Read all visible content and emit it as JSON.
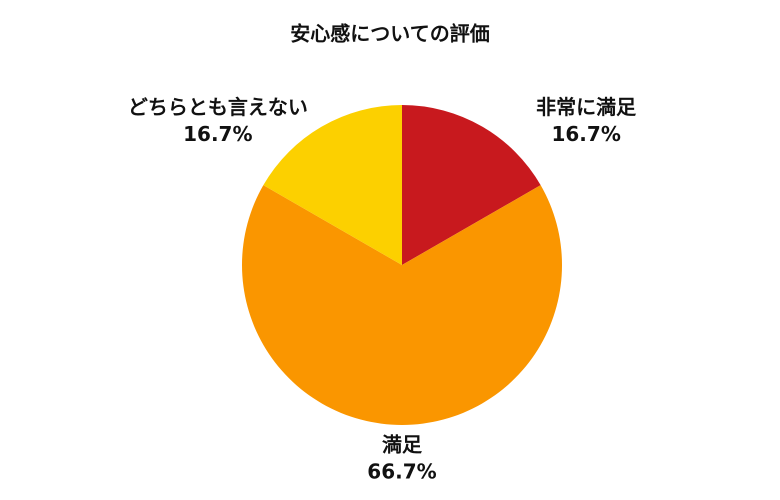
{
  "chart_data": {
    "type": "pie",
    "title": "安心感についての評価",
    "categories": [
      "非常に満足",
      "満足",
      "どちらとも言えない"
    ],
    "values": [
      16.7,
      66.7,
      16.7
    ],
    "value_labels": [
      "16.7%",
      "66.7%",
      "16.7%"
    ],
    "colors": [
      "#c8191e",
      "#fa9600",
      "#fcd000"
    ]
  }
}
